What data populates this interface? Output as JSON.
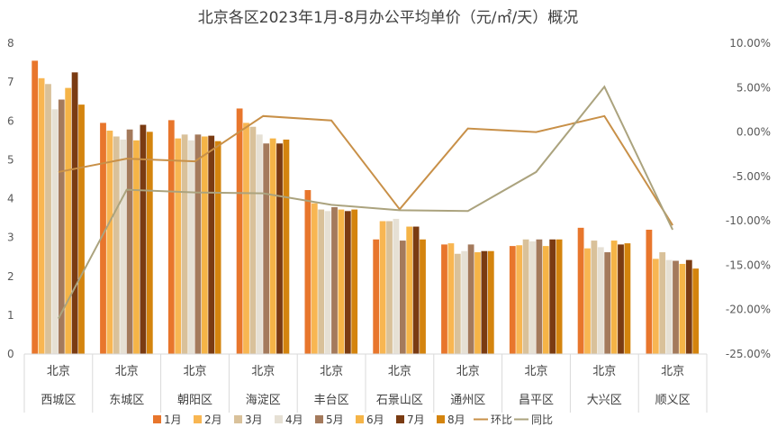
{
  "chart_data": {
    "type": "bar",
    "title": "北京各区2023年1月-8月办公平均单价（元/㎡/天）概况",
    "region_label": "北京",
    "categories": [
      "西城区",
      "东城区",
      "朝阳区",
      "海淀区",
      "丰台区",
      "石景山区",
      "通州区",
      "昌平区",
      "大兴区",
      "顺义区"
    ],
    "ylim": [
      0,
      8
    ],
    "y2lim": [
      -25,
      10
    ],
    "y_ticks": [
      "0",
      "1",
      "2",
      "3",
      "4",
      "5",
      "6",
      "7",
      "8"
    ],
    "y2_ticks": [
      "-25.00%",
      "-20.00%",
      "-15.00%",
      "-10.00%",
      "-5.00%",
      "0.00%",
      "5.00%",
      "10.00%"
    ],
    "grid": false,
    "legend_position": "bottom",
    "series": [
      {
        "name": "1月",
        "color": "#E8762C",
        "values": [
          7.55,
          5.95,
          6.02,
          6.32,
          4.22,
          2.95,
          2.82,
          2.78,
          3.25,
          3.2
        ]
      },
      {
        "name": "2月",
        "color": "#F8B652",
        "values": [
          7.1,
          5.75,
          5.55,
          5.95,
          3.88,
          3.42,
          2.85,
          2.8,
          2.72,
          2.45
        ]
      },
      {
        "name": "3月",
        "color": "#D9C19A",
        "values": [
          6.95,
          5.6,
          5.65,
          5.85,
          3.72,
          3.42,
          2.58,
          2.95,
          2.92,
          2.62
        ]
      },
      {
        "name": "4月",
        "color": "#E6E0D4",
        "values": [
          6.3,
          5.52,
          5.5,
          5.65,
          3.68,
          3.48,
          2.65,
          2.9,
          2.75,
          2.42
        ]
      },
      {
        "name": "5月",
        "color": "#A47A5C",
        "values": [
          6.55,
          5.78,
          5.65,
          5.42,
          3.78,
          2.92,
          2.82,
          2.95,
          2.62,
          2.4
        ]
      },
      {
        "name": "6月",
        "color": "#F5B447",
        "values": [
          6.85,
          5.5,
          5.6,
          5.55,
          3.72,
          3.28,
          2.62,
          2.78,
          2.92,
          2.32
        ]
      },
      {
        "name": "7月",
        "color": "#7A3B12",
        "values": [
          7.25,
          5.9,
          5.62,
          5.42,
          3.68,
          3.28,
          2.65,
          2.95,
          2.82,
          2.42
        ]
      },
      {
        "name": "8月",
        "color": "#D4840E",
        "values": [
          6.42,
          5.72,
          5.48,
          5.52,
          3.72,
          2.95,
          2.65,
          2.95,
          2.85,
          2.2
        ]
      }
    ],
    "line_series": [
      {
        "name": "环比",
        "color": "#C89048",
        "axis": "right",
        "values": [
          -4.5,
          -3.0,
          -3.3,
          1.8,
          1.3,
          -8.7,
          0.4,
          0.0,
          1.8,
          -10.5
        ]
      },
      {
        "name": "同比",
        "color": "#ABA37E",
        "axis": "right",
        "values": [
          -21.0,
          -6.5,
          -6.8,
          -6.9,
          -8.2,
          -8.8,
          -8.9,
          -4.5,
          5.1,
          -11.0
        ]
      }
    ]
  }
}
